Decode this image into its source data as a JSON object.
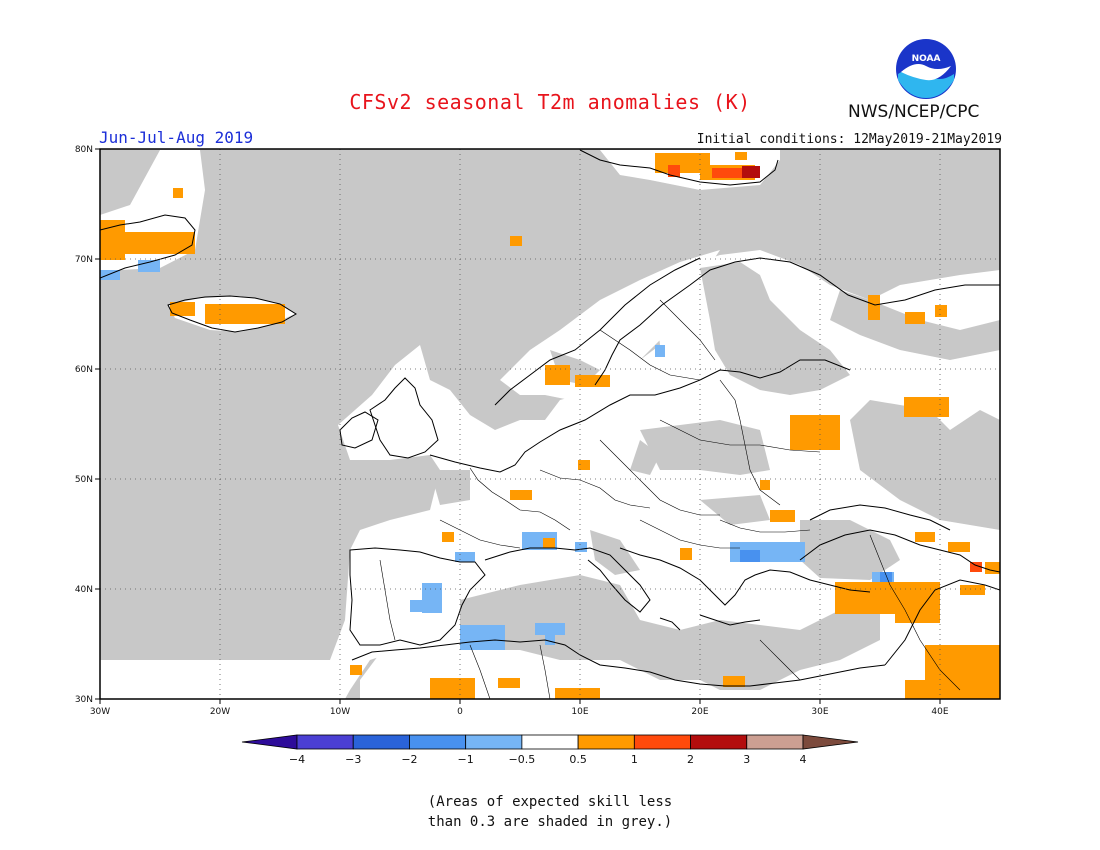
{
  "header": {
    "title": "CFSv2 seasonal T2m anomalies (K)",
    "org": "NWS/NCEP/CPC",
    "period": "Jun-Jul-Aug 2019",
    "initial_conditions": "Initial conditions: 12May2019-21May2019"
  },
  "logo": {
    "icon": "noaa-logo",
    "text": "NOAA"
  },
  "map": {
    "lon_range": [
      -30,
      45
    ],
    "lat_range": [
      30,
      80
    ],
    "lat_ticks": [
      "30N",
      "40N",
      "50N",
      "60N",
      "70N",
      "80N"
    ],
    "lon_ticks": [
      "30W",
      "20W",
      "10W",
      "0",
      "10E",
      "20E",
      "30E",
      "40E"
    ],
    "grid": true,
    "background_color": "#c8c8c8"
  },
  "colorbar": {
    "tick_labels": [
      "-4",
      "-3",
      "-2",
      "-1",
      "-0.5",
      "0.5",
      "1",
      "2",
      "3",
      "4"
    ],
    "colors": [
      "#2e0c9a",
      "#4b3fd3",
      "#2a63d9",
      "#4891ef",
      "#76b5f5",
      "#ffffff",
      "#ff9a00",
      "#ff4a0c",
      "#b30d0d",
      "#cc9f92",
      "#7c4a3c"
    ]
  },
  "footnote": {
    "line1": "(Areas of expected skill less",
    "line2": "than 0.3 are shaded in grey.)"
  }
}
